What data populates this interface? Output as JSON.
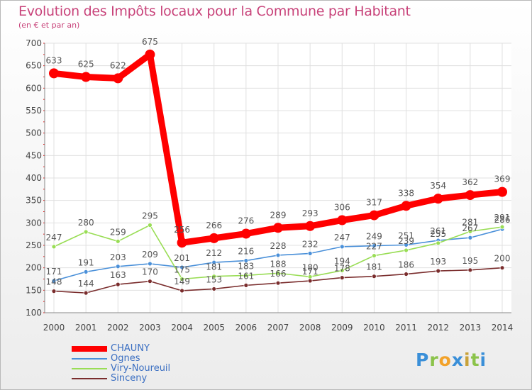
{
  "title": "Evolution des Impôts locaux pour la Commune par Habitant",
  "subtitle": "(en € et par an)",
  "logo_text": "Proxiti",
  "colors": {
    "title": "#c8437a",
    "grid": "#e0e0e0",
    "axis_text": "#444444",
    "legend_text": "#3b6fc2"
  },
  "chart_data": {
    "type": "line",
    "title": "Evolution des Impôts locaux pour la Commune par Habitant",
    "subtitle": "(en € et par an)",
    "x": [
      2000,
      2001,
      2002,
      2003,
      2004,
      2005,
      2006,
      2007,
      2008,
      2009,
      2010,
      2011,
      2012,
      2013,
      2014
    ],
    "ylim": [
      100,
      700
    ],
    "yticks": [
      100,
      150,
      200,
      250,
      300,
      350,
      400,
      450,
      500,
      550,
      600,
      650,
      700
    ],
    "grid": true,
    "legend_position": "bottom-left",
    "series": [
      {
        "name": "CHAUNY",
        "color": "#ff0000",
        "emphasis": true,
        "values": [
          633,
          625,
          622,
          675,
          256,
          266,
          276,
          289,
          293,
          306,
          317,
          338,
          354,
          362,
          369
        ],
        "labels": [
          "633",
          "625",
          "622",
          "675",
          "256",
          "266",
          "276",
          "289",
          "293",
          "306",
          "317",
          "338",
          "354",
          "362",
          "369"
        ]
      },
      {
        "name": "Ognes",
        "color": "#4a90d9",
        "emphasis": false,
        "values": [
          171,
          191,
          203,
          209,
          201,
          212,
          216,
          228,
          232,
          247,
          249,
          251,
          261,
          267,
          286
        ],
        "labels": [
          "171",
          "191",
          "203",
          "209",
          "201",
          "212",
          "216",
          "228",
          "232",
          "247",
          "249",
          "251",
          "261",
          "267",
          "286"
        ]
      },
      {
        "name": "Viry-Noureuil",
        "color": "#99dd55",
        "emphasis": false,
        "values": [
          247,
          280,
          259,
          295,
          175,
          181,
          183,
          188,
          180,
          194,
          227,
          239,
          255,
          281,
          291
        ],
        "labels": [
          "247",
          "280",
          "259",
          "295",
          "175",
          "181",
          "183",
          "188",
          "180",
          "194",
          "227",
          "239",
          "255",
          "281",
          "291"
        ]
      },
      {
        "name": "Sinceny",
        "color": "#7a2d2d",
        "emphasis": false,
        "values": [
          148,
          144,
          163,
          170,
          149,
          153,
          161,
          166,
          171,
          178,
          181,
          186,
          193,
          195,
          200
        ],
        "labels": [
          "148",
          "144",
          "163",
          "170",
          "149",
          "153",
          "161",
          "166",
          "171",
          "178",
          "181",
          "186",
          "193",
          "195",
          "200"
        ]
      }
    ]
  }
}
